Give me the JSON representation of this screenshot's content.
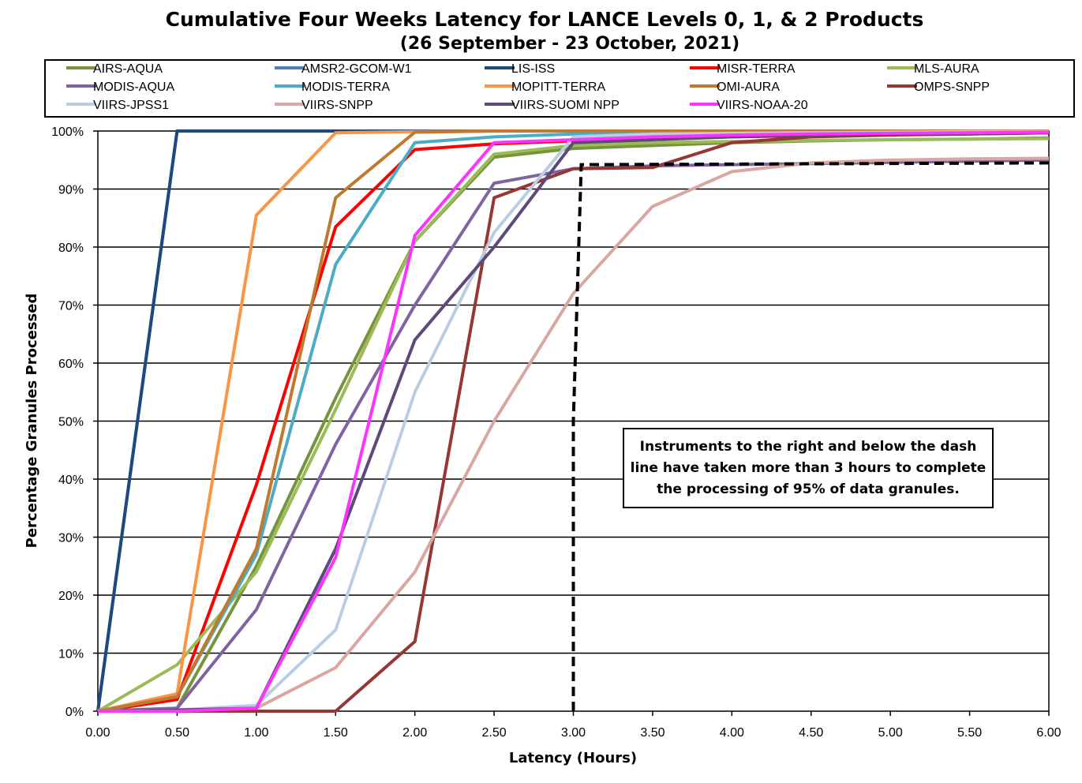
{
  "chart_data": {
    "type": "line",
    "title": "Cumulative Four Weeks Latency  for LANCE Levels 0, 1, & 2 Products",
    "subtitle": "(26  September   -  23  October,  2021)",
    "xlabel": "Latency (Hours)",
    "ylabel": "Percentage Granules Processed",
    "xlim": [
      0,
      6
    ],
    "ylim": [
      0,
      100
    ],
    "x_ticks": [
      "0.00",
      "0.50",
      "1.00",
      "1.50",
      "2.00",
      "2.50",
      "3.00",
      "3.50",
      "4.00",
      "4.50",
      "5.00",
      "5.50",
      "6.00"
    ],
    "y_ticks": [
      "0%",
      "10%",
      "20%",
      "30%",
      "40%",
      "50%",
      "60%",
      "70%",
      "80%",
      "90%",
      "100%"
    ],
    "grid": "horizontal",
    "legend_position": "top",
    "x": [
      0,
      0.5,
      1,
      1.5,
      2,
      2.5,
      3,
      3.5,
      4,
      4.5,
      5,
      5.5,
      6
    ],
    "series": [
      {
        "name": "AIRS-AQUA",
        "color": "#77933C",
        "values": [
          0,
          0.5,
          25,
          54,
          81,
          95.5,
          97,
          97.5,
          98,
          98.3,
          98.5,
          98.6,
          98.8
        ]
      },
      {
        "name": "AMSR2-GCOM-W1",
        "color": "#4F81BD",
        "values": [
          0,
          100,
          100,
          100,
          100,
          100,
          100,
          100,
          100,
          100,
          100,
          100,
          100
        ]
      },
      {
        "name": "LIS-ISS",
        "color": "#1F497D",
        "values": [
          0,
          100,
          100,
          100,
          100,
          100,
          100,
          100,
          100,
          100,
          100,
          100,
          100
        ]
      },
      {
        "name": "MISR-TERRA",
        "color": "#FF0000",
        "values": [
          0,
          2,
          39,
          83.5,
          96.8,
          97.8,
          98.3,
          98.6,
          99,
          99.2,
          99.4,
          99.5,
          99.7
        ]
      },
      {
        "name": "MLS-AURA",
        "color": "#9BBB59",
        "values": [
          0,
          8,
          24,
          52,
          81,
          96,
          97.5,
          98,
          98.2,
          98.4,
          98.5,
          98.6,
          98.7
        ]
      },
      {
        "name": "MODIS-AQUA",
        "color": "#8064A2",
        "values": [
          0,
          0.5,
          17.5,
          46,
          70,
          91,
          93.5,
          94,
          94.2,
          94.4,
          94.6,
          94.8,
          95
        ]
      },
      {
        "name": "MODIS-TERRA",
        "color": "#4BACC6",
        "values": [
          0,
          2.5,
          27,
          77,
          98,
          99,
          99.5,
          99.6,
          99.7,
          99.8,
          99.8,
          99.9,
          99.9
        ]
      },
      {
        "name": "MOPITT-TERRA",
        "color": "#F79646",
        "values": [
          0,
          3,
          85.5,
          99.7,
          99.9,
          100,
          100,
          100,
          100,
          100,
          100,
          100,
          100
        ]
      },
      {
        "name": "OMI-AURA",
        "color": "#C0792F",
        "values": [
          0,
          2.5,
          28,
          88.5,
          99.8,
          100,
          100,
          100,
          100,
          100,
          100,
          100,
          100
        ]
      },
      {
        "name": "OMPS-SNPP",
        "color": "#953735",
        "values": [
          0,
          0,
          0,
          0,
          12,
          88.5,
          93.5,
          93.7,
          98,
          99,
          99.3,
          99.5,
          99.7
        ]
      },
      {
        "name": "VIIRS-JPSS1",
        "color": "#B9CDE5",
        "values": [
          0,
          0.2,
          1,
          14,
          55,
          82.5,
          99,
          99.5,
          99.6,
          99.7,
          99.8,
          99.9,
          99.9
        ]
      },
      {
        "name": "VIIRS-SNPP",
        "color": "#D9A6A2",
        "values": [
          0,
          0.2,
          0.5,
          7.5,
          24,
          50,
          72,
          87,
          93,
          94.5,
          95,
          95.2,
          95.3
        ]
      },
      {
        "name": "VIIRS-SUOMI NPP",
        "color": "#5F497A",
        "values": [
          0,
          0.2,
          0.5,
          28,
          64,
          80,
          98,
          98.5,
          99,
          99.3,
          99.5,
          99.6,
          99.7
        ]
      },
      {
        "name": "VIIRS-NOAA-20",
        "color": "#FF33FF",
        "values": [
          0,
          0,
          0.5,
          26.5,
          82,
          98,
          98.5,
          99,
          99.3,
          99.5,
          99.6,
          99.7,
          99.8
        ]
      }
    ],
    "threshold_line": {
      "x": [
        3.0,
        3.0,
        3.05,
        6.0
      ],
      "y": [
        0,
        50,
        94.2,
        94.5
      ]
    },
    "annotation": [
      "Instruments to the right and below the dash",
      "line have taken more than 3 hours to complete",
      "the processing of 95% of data granules."
    ]
  }
}
